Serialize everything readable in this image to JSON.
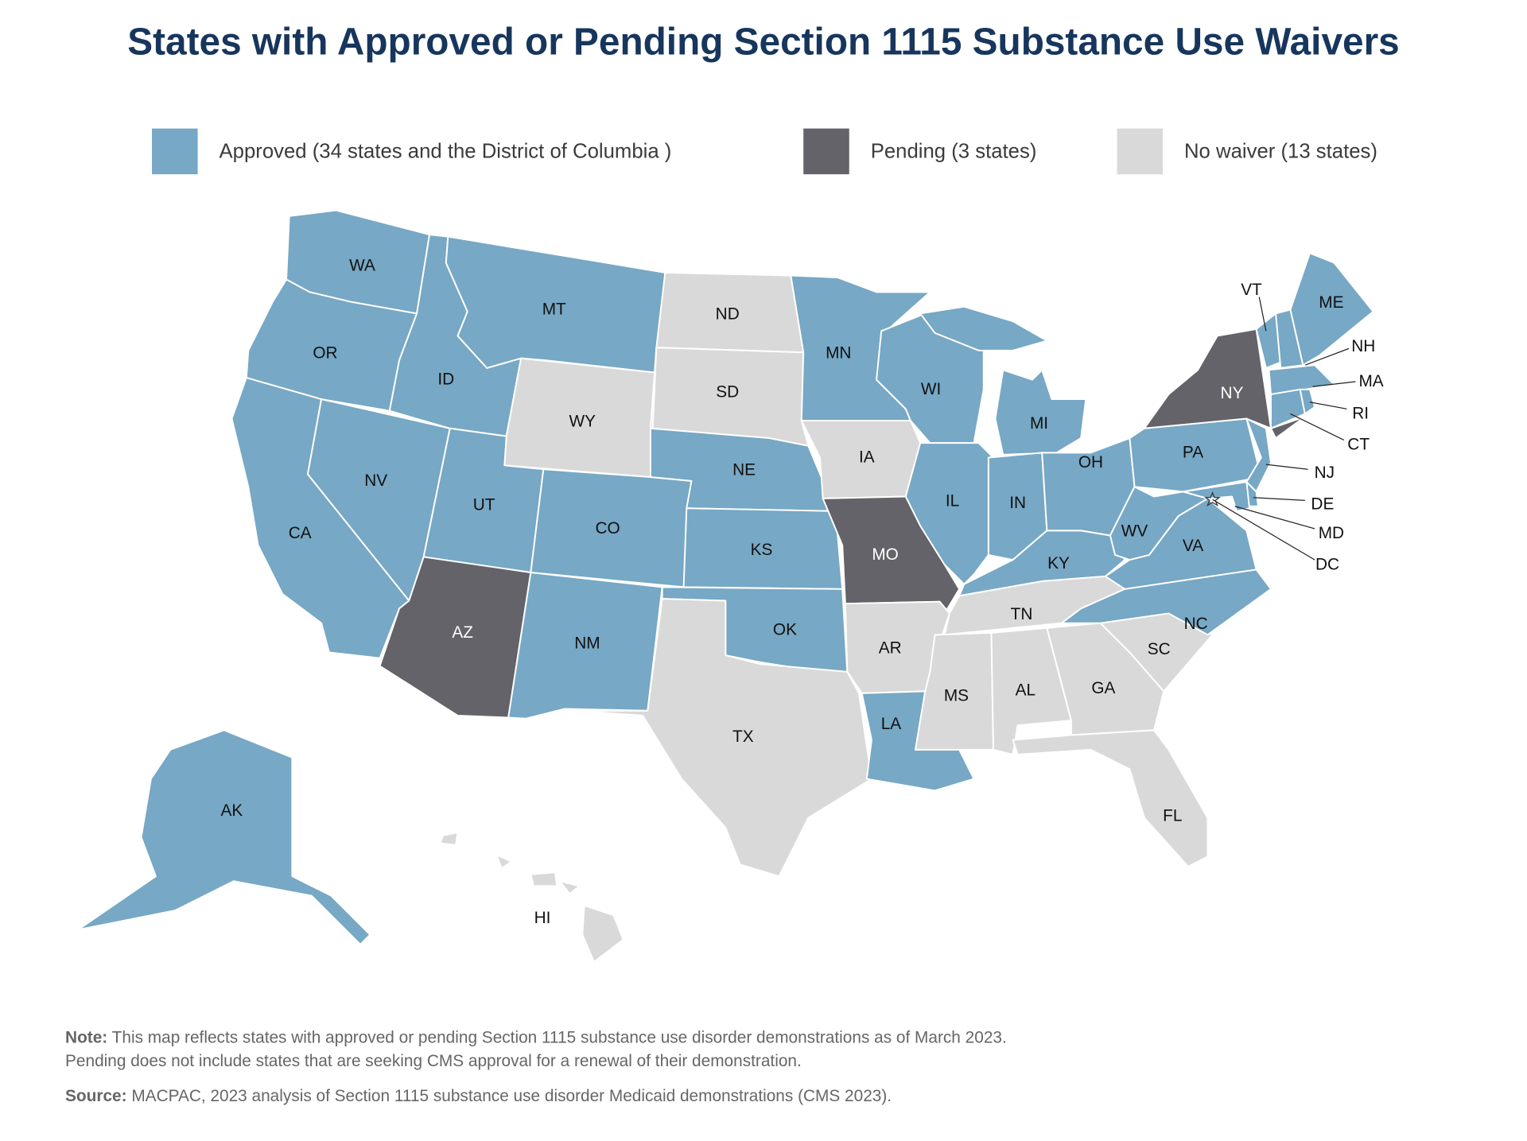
{
  "title": "States with Approved or Pending Section 1115 Substance Use Waivers",
  "legend": [
    {
      "label": "Approved (34 states and the District of Columbia )",
      "status": "approved",
      "color": "#77a8c5"
    },
    {
      "label": "Pending (3 states)",
      "status": "pending",
      "color": "#636369"
    },
    {
      "label": "No waiver (13 states)",
      "status": "none",
      "color": "#d9d9d9"
    }
  ],
  "states": [
    {
      "abbr": "WA",
      "status": "approved"
    },
    {
      "abbr": "OR",
      "status": "approved"
    },
    {
      "abbr": "CA",
      "status": "approved"
    },
    {
      "abbr": "NV",
      "status": "approved"
    },
    {
      "abbr": "ID",
      "status": "approved"
    },
    {
      "abbr": "MT",
      "status": "approved"
    },
    {
      "abbr": "WY",
      "status": "none"
    },
    {
      "abbr": "UT",
      "status": "approved"
    },
    {
      "abbr": "AZ",
      "status": "pending"
    },
    {
      "abbr": "CO",
      "status": "approved"
    },
    {
      "abbr": "NM",
      "status": "approved"
    },
    {
      "abbr": "ND",
      "status": "none"
    },
    {
      "abbr": "SD",
      "status": "none"
    },
    {
      "abbr": "NE",
      "status": "approved"
    },
    {
      "abbr": "KS",
      "status": "approved"
    },
    {
      "abbr": "OK",
      "status": "approved"
    },
    {
      "abbr": "TX",
      "status": "none"
    },
    {
      "abbr": "MN",
      "status": "approved"
    },
    {
      "abbr": "IA",
      "status": "none"
    },
    {
      "abbr": "MO",
      "status": "pending"
    },
    {
      "abbr": "AR",
      "status": "none"
    },
    {
      "abbr": "LA",
      "status": "approved"
    },
    {
      "abbr": "WI",
      "status": "approved"
    },
    {
      "abbr": "MI",
      "status": "approved"
    },
    {
      "abbr": "IL",
      "status": "approved"
    },
    {
      "abbr": "IN",
      "status": "approved"
    },
    {
      "abbr": "OH",
      "status": "approved"
    },
    {
      "abbr": "KY",
      "status": "approved"
    },
    {
      "abbr": "TN",
      "status": "none"
    },
    {
      "abbr": "MS",
      "status": "none"
    },
    {
      "abbr": "AL",
      "status": "none"
    },
    {
      "abbr": "GA",
      "status": "none"
    },
    {
      "abbr": "FL",
      "status": "none"
    },
    {
      "abbr": "SC",
      "status": "none"
    },
    {
      "abbr": "NC",
      "status": "approved"
    },
    {
      "abbr": "VA",
      "status": "approved"
    },
    {
      "abbr": "WV",
      "status": "approved"
    },
    {
      "abbr": "PA",
      "status": "approved"
    },
    {
      "abbr": "NY",
      "status": "pending"
    },
    {
      "abbr": "NJ",
      "status": "approved"
    },
    {
      "abbr": "DE",
      "status": "approved"
    },
    {
      "abbr": "MD",
      "status": "approved"
    },
    {
      "abbr": "DC",
      "status": "approved"
    },
    {
      "abbr": "VT",
      "status": "approved"
    },
    {
      "abbr": "NH",
      "status": "approved"
    },
    {
      "abbr": "ME",
      "status": "approved"
    },
    {
      "abbr": "MA",
      "status": "approved"
    },
    {
      "abbr": "CT",
      "status": "approved"
    },
    {
      "abbr": "RI",
      "status": "approved"
    },
    {
      "abbr": "AK",
      "status": "approved"
    },
    {
      "abbr": "HI",
      "status": "none"
    }
  ],
  "note": {
    "note_label": "Note:",
    "note_line1": "This map reflects states with approved or pending Section 1115 substance use disorder demonstrations as of March 2023.",
    "note_line2": "Pending does not include states that are seeking CMS approval for a renewal of their demonstration.",
    "source_label": "Source:",
    "source_text": "MACPAC, 2023 analysis of Section 1115 substance use disorder Medicaid demonstrations (CMS 2023)."
  }
}
